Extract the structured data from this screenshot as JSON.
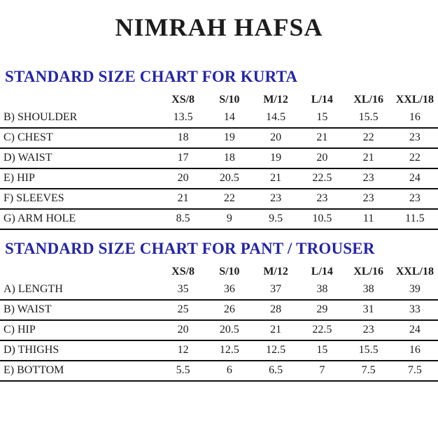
{
  "page": {
    "title": "NIMRAH HAFSA"
  },
  "kurta_chart": {
    "heading": "STANDARD SIZE CHART FOR KURTA",
    "columns": [
      "XS/8",
      "S/10",
      "M/12",
      "L/14",
      "XL/16",
      "XXL/18"
    ],
    "rows": [
      {
        "label": "B) SHOULDER",
        "values": [
          "13.5",
          "14",
          "14.5",
          "15",
          "15.5",
          "16"
        ]
      },
      {
        "label": "C) CHEST",
        "values": [
          "18",
          "19",
          "20",
          "21",
          "22",
          "23"
        ]
      },
      {
        "label": "D) WAIST",
        "values": [
          "17",
          "18",
          "19",
          "20",
          "21",
          "22"
        ]
      },
      {
        "label": "E) HIP",
        "values": [
          "20",
          "20.5",
          "21",
          "22.5",
          "23",
          "24"
        ]
      },
      {
        "label": "F) SLEEVES",
        "values": [
          "21",
          "22",
          "23",
          "23",
          "23",
          "23"
        ]
      },
      {
        "label": "G) ARM HOLE",
        "values": [
          "8.5",
          "9",
          "9.5",
          "10.5",
          "11",
          "11.5"
        ]
      }
    ]
  },
  "pant_chart": {
    "heading": "STANDARD SIZE CHART FOR PANT / TROUSER",
    "columns": [
      "XS/8",
      "S/10",
      "M/12",
      "L/14",
      "XL/16",
      "XXL/18"
    ],
    "rows": [
      {
        "label": "A) LENGTH",
        "values": [
          "35",
          "36",
          "37",
          "38",
          "38",
          "39"
        ]
      },
      {
        "label": "B) WAIST",
        "values": [
          "25",
          "26",
          "28",
          "29",
          "31",
          "33"
        ]
      },
      {
        "label": "C) HIP",
        "values": [
          "20",
          "20.5",
          "21",
          "22.5",
          "23",
          "24"
        ]
      },
      {
        "label": "D) THIGHS",
        "values": [
          "12",
          "12.5",
          "12.5",
          "15",
          "15.5",
          "16"
        ]
      },
      {
        "label": "E) BOTTOM",
        "values": [
          "5.5",
          "6",
          "6.5",
          "7",
          "7.5",
          "7.5"
        ]
      }
    ]
  },
  "colors": {
    "heading_blue": "#2525a8",
    "text_black": "#1c1c1c",
    "rule_black": "#0f0f0f",
    "background": "#ffffff"
  }
}
